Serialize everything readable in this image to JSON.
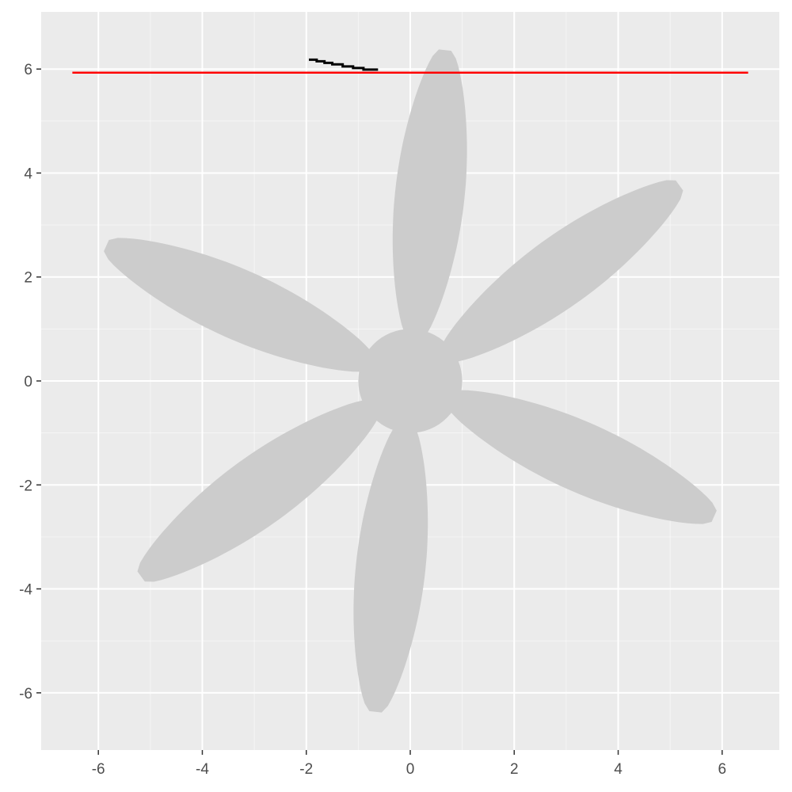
{
  "chart_data": {
    "type": "other",
    "title": "",
    "xlabel": "",
    "ylabel": "",
    "xlim": [
      -7.1,
      7.1
    ],
    "ylim": [
      -7.1,
      7.1
    ],
    "grid": true,
    "x_ticks": [
      -6,
      -4,
      -2,
      0,
      2,
      4,
      6
    ],
    "y_ticks": [
      -6,
      -4,
      -2,
      0,
      2,
      4,
      6
    ],
    "x_tick_labels": [
      "-6",
      "-4",
      "-2",
      "0",
      "2",
      "4",
      "6"
    ],
    "y_tick_labels": [
      "-6",
      "-4",
      "-2",
      "0",
      "2",
      "4",
      "6"
    ],
    "hub": {
      "center": [
        0,
        0
      ],
      "radius": 1.0,
      "color": "#cccccc"
    },
    "blades": [
      {
        "angle_deg": 84,
        "base_r": 0.8,
        "tip_r": 6.4,
        "width": 1.1
      },
      {
        "angle_deg": 36,
        "base_r": 0.8,
        "tip_r": 6.4,
        "width": 1.1
      },
      {
        "angle_deg": -24,
        "base_r": 0.8,
        "tip_r": 6.4,
        "width": 1.1
      },
      {
        "angle_deg": -96,
        "base_r": 0.8,
        "tip_r": 6.4,
        "width": 1.1
      },
      {
        "angle_deg": -144,
        "base_r": 0.8,
        "tip_r": 6.4,
        "width": 1.1
      },
      {
        "angle_deg": 156,
        "base_r": 0.8,
        "tip_r": 6.4,
        "width": 1.1
      }
    ],
    "blade_color": "#cccccc",
    "hline": {
      "y": 5.93,
      "x": [
        -6.5,
        6.5
      ],
      "color": "#ff0000"
    },
    "steps": {
      "color": "#000000",
      "points": [
        [
          -1.95,
          6.18
        ],
        [
          -1.8,
          6.15
        ],
        [
          -1.65,
          6.12
        ],
        [
          -1.5,
          6.09
        ],
        [
          -1.3,
          6.05
        ],
        [
          -1.1,
          6.02
        ],
        [
          -0.9,
          5.99
        ],
        [
          -0.62,
          5.99
        ]
      ]
    },
    "panel_color": "#ebebeb",
    "grid_color": "#ffffff"
  }
}
